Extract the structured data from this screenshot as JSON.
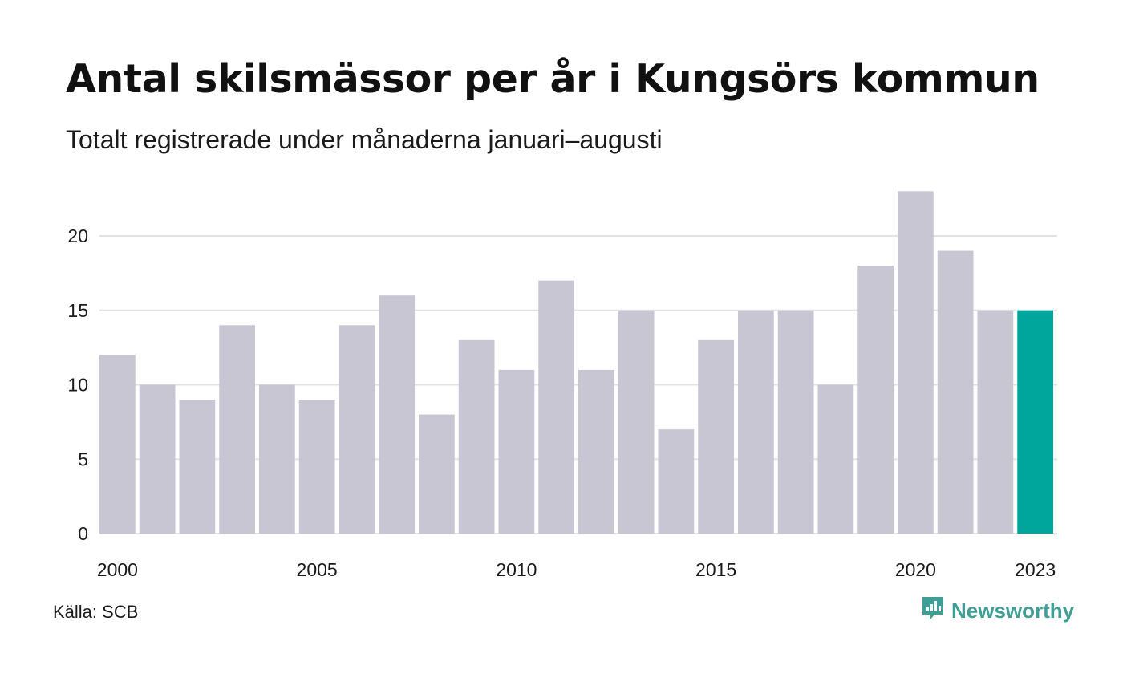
{
  "header": {
    "title": "Antal skilsmässor per år i Kungsörs kommun",
    "subtitle": "Totalt registrerade under månaderna januari–augusti"
  },
  "footer": {
    "source": "Källa: SCB",
    "brand": "Newsworthy",
    "brand_icon": "newsworthy-logo-icon"
  },
  "colors": {
    "bar": "#c8c6d2",
    "highlight": "#00a59b",
    "grid": "#e3e3e3",
    "text": "#1a1a1a",
    "brand": "#3f9f96"
  },
  "chart_data": {
    "type": "bar",
    "title": "Antal skilsmässor per år i Kungsörs kommun",
    "subtitle": "Totalt registrerade under månaderna januari–augusti",
    "categories": [
      "2000",
      "2001",
      "2002",
      "2003",
      "2004",
      "2005",
      "2006",
      "2007",
      "2008",
      "2009",
      "2010",
      "2011",
      "2012",
      "2013",
      "2014",
      "2015",
      "2016",
      "2017",
      "2018",
      "2019",
      "2020",
      "2021",
      "2022",
      "2023"
    ],
    "values": [
      12,
      10,
      9,
      14,
      10,
      9,
      14,
      16,
      8,
      13,
      11,
      17,
      11,
      15,
      7,
      13,
      15,
      15,
      10,
      18,
      23,
      19,
      15,
      15
    ],
    "highlight": "2023",
    "x_tick_labels": [
      "2000",
      "2005",
      "2010",
      "2015",
      "2020",
      "2023"
    ],
    "y_ticks": [
      0,
      5,
      10,
      15,
      20
    ],
    "ylim": [
      0,
      23
    ],
    "xlabel": "",
    "ylabel": "",
    "grid": true,
    "legend": "none"
  }
}
